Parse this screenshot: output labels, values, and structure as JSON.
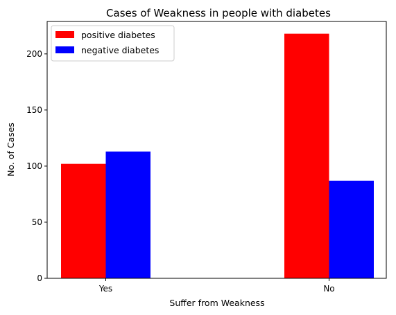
{
  "chart_data": {
    "type": "bar",
    "title": "Cases of Weakness in people with diabetes",
    "xlabel": "Suffer from Weakness",
    "ylabel": "No. of Cases",
    "categories": [
      "Yes",
      "No"
    ],
    "series": [
      {
        "name": "positive diabetes",
        "color": "#ff0000",
        "values": [
          102,
          218
        ]
      },
      {
        "name": "negative diabetes",
        "color": "#0000ff",
        "values": [
          113,
          87
        ]
      }
    ],
    "ylim": [
      0,
      228.9
    ],
    "yticks": [
      0,
      50,
      100,
      150,
      200
    ],
    "ytick_labels": [
      "0",
      "50",
      "100",
      "150",
      "200"
    ],
    "grid": false,
    "legend_position": "upper-left"
  }
}
